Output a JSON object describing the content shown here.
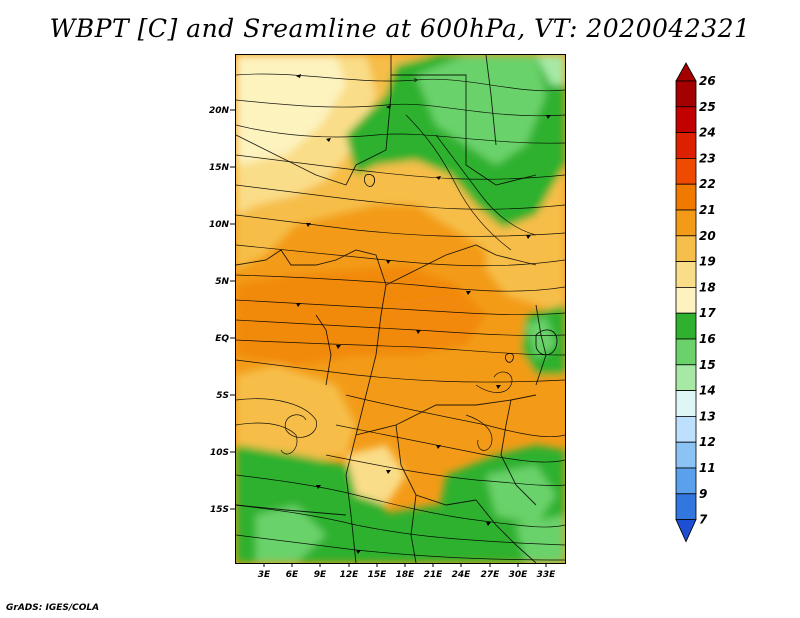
{
  "title": "WBPT [C] and Sreamline at 600hPa, VT: 2020042321",
  "footer": "GrADS: IGES/COLA",
  "axes": {
    "lat_labels": [
      "20N",
      "15N",
      "10N",
      "5N",
      "EQ",
      "5S",
      "10S",
      "15S"
    ],
    "lon_labels": [
      "3E",
      "6E",
      "9E",
      "12E",
      "15E",
      "18E",
      "21E",
      "24E",
      "27E",
      "30E",
      "33E"
    ]
  },
  "colorbar": {
    "labels": [
      "26",
      "25",
      "24",
      "23",
      "22",
      "21",
      "20",
      "19",
      "18",
      "17",
      "16",
      "15",
      "14",
      "13",
      "12",
      "11",
      "9",
      "7"
    ],
    "colors": [
      "#a50000",
      "#c30000",
      "#dd2000",
      "#ee4a00",
      "#f07a00",
      "#f39b18",
      "#f6be4a",
      "#fadd88",
      "#fdf3bf",
      "#2fb12f",
      "#6bd26b",
      "#a5e9a5",
      "#dff6f6",
      "#bde0ff",
      "#8cc3f5",
      "#5aa0ec",
      "#3276e0",
      "#1c4fd4"
    ]
  }
}
